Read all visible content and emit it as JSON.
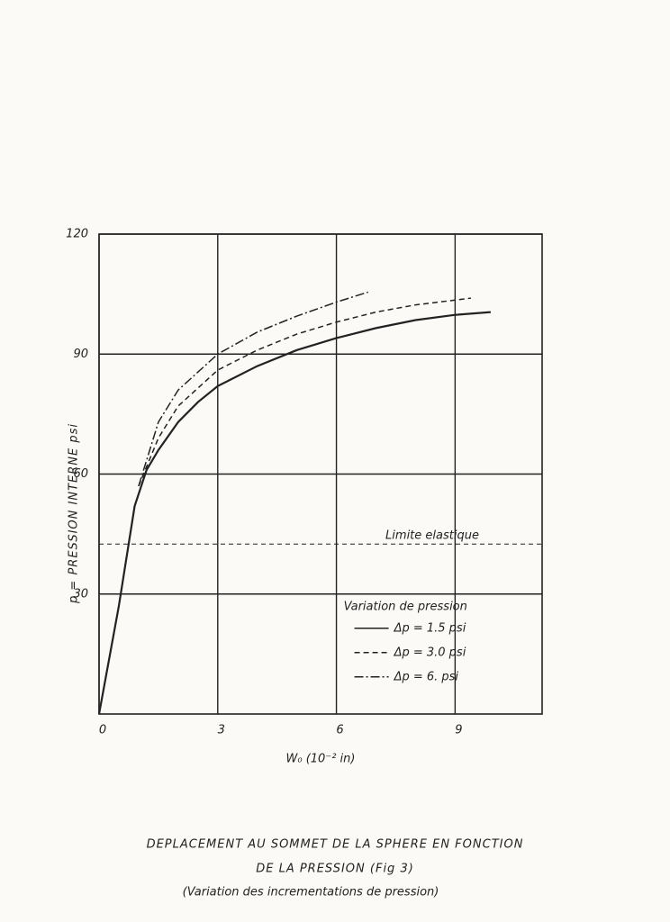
{
  "chart_data": {
    "type": "line",
    "title": [
      "DEPLACEMENT AU SOMMET DE LA SPHERE EN FONCTION",
      "DE LA PRESSION (Fig 3)"
    ],
    "subtitle": "(Variation des incrementations de pression)",
    "x_label": "W₀ (10⁻² in)",
    "y_label": "p = PRESSION INTERNE psi",
    "xlim": [
      0,
      11.2
    ],
    "ylim": [
      0,
      120
    ],
    "xticks": [
      0,
      3,
      6,
      9
    ],
    "yticks": [
      30,
      60,
      90,
      120
    ],
    "grid": true,
    "legend_title": "Variation de pression",
    "legend": "lower right",
    "series": [
      {
        "name": "Δp = 1.5 psi",
        "color": "#222",
        "linestyle": "solid",
        "x": [
          0,
          0.5,
          0.9,
          1.2,
          1.5,
          2,
          2.5,
          3,
          4,
          5,
          6,
          7,
          8,
          9,
          9.9
        ],
        "y": [
          0,
          27,
          52,
          61,
          66,
          73,
          78,
          82,
          87,
          91,
          94,
          96.5,
          98.5,
          99.8,
          100.5
        ]
      },
      {
        "name": "Δp = 3.0 psi",
        "color": "#222",
        "linestyle": "dashed",
        "x": [
          1,
          1.5,
          2,
          3,
          4,
          5,
          6,
          7,
          8,
          9,
          9.4
        ],
        "y": [
          57,
          69,
          77,
          86,
          91,
          95,
          98,
          100.5,
          102.3,
          103.5,
          104
        ]
      },
      {
        "name": "Δp = 6. psi",
        "color": "#222",
        "linestyle": "dashdot",
        "x": [
          1,
          1.5,
          2,
          3,
          4,
          5,
          6,
          6.8
        ],
        "y": [
          57,
          73,
          81,
          90,
          95.5,
          99.5,
          103,
          105.5
        ]
      }
    ],
    "annotations": [
      {
        "text": "Limite elastique",
        "y": 42.5
      }
    ]
  }
}
